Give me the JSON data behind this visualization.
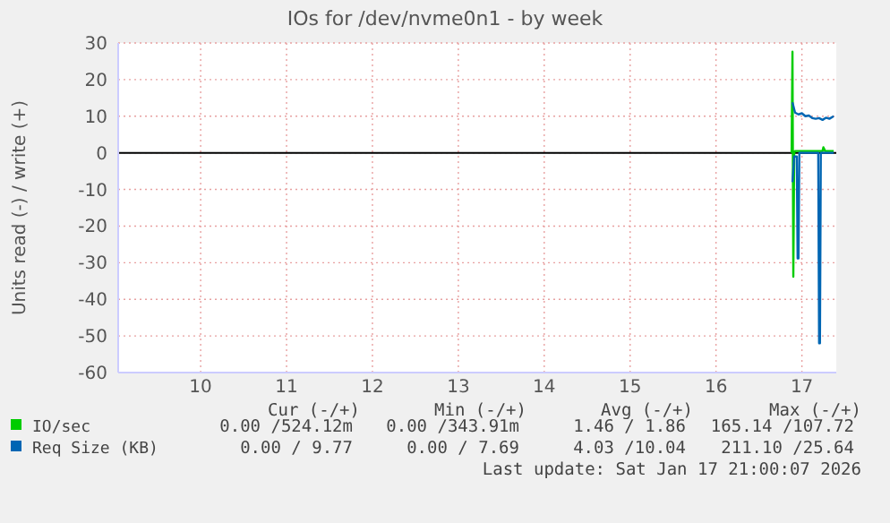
{
  "chart_data": {
    "type": "line",
    "title": "IOs for /dev/nvme0n1 - by week",
    "ylabel": "Units read (-) / write (+)",
    "xlim": [
      9.04,
      17.4
    ],
    "xticks": [
      10,
      11,
      12,
      13,
      14,
      15,
      16,
      17
    ],
    "ylim": [
      -60,
      30
    ],
    "yticks": [
      -60,
      -50,
      -40,
      -30,
      -20,
      -10,
      0,
      10,
      20,
      30
    ],
    "grid": true,
    "legend": "bottom",
    "line_style": "solid",
    "marker": "none",
    "ref_lines": [
      {
        "axis": "y",
        "value": 0,
        "color": "#000000"
      }
    ],
    "series": [
      {
        "name": "IO/sec",
        "color": "#00cc00",
        "x": [
          16.88,
          16.89,
          16.9,
          16.91,
          16.92,
          17.0,
          17.2,
          17.24,
          17.25,
          17.27,
          17.37
        ],
        "values": [
          0,
          27.6,
          -33.8,
          0,
          0.5,
          0.5,
          0.5,
          0.5,
          1.5,
          0.5,
          0.5
        ]
      },
      {
        "color": "#0066b3",
        "x": [
          16.89,
          16.91,
          16.94,
          16.95,
          16.96,
          16.97,
          17.0,
          17.19,
          17.2,
          17.21,
          17.22,
          17.25,
          17.37
        ],
        "values": [
          -8,
          -1,
          -1,
          -28.8,
          -28.8,
          0,
          0,
          0,
          -52,
          -52,
          0,
          0,
          0
        ]
      },
      {
        "name": "Req Size (KB)",
        "color": "#0066b3",
        "x": [
          16.89,
          16.92,
          16.96,
          17.0,
          17.04,
          17.08,
          17.12,
          17.16,
          17.2,
          17.24,
          17.28,
          17.32,
          17.37
        ],
        "values": [
          13.8,
          11,
          10.5,
          10.8,
          10,
          10.2,
          9.5,
          9.3,
          9.5,
          9.0,
          9.6,
          9.3,
          10
        ]
      }
    ],
    "annotations": [
      "Cur (-/+)",
      "Min (-/+)",
      "Avg (-/+)",
      "Max (-/+)",
      "0.00 /524.12m",
      "0.00 /343.91m",
      "1.46 / 1.86",
      "165.14 /107.72",
      "0.00 / 9.77",
      "0.00 / 7.69",
      "4.03 /10.04",
      "211.10 /25.64",
      "Last update: Sat Jan 17 21:00:07 2026"
    ]
  }
}
